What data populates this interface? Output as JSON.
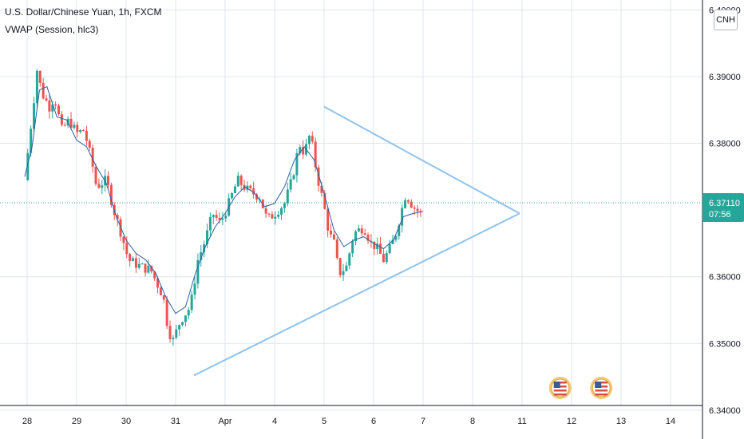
{
  "header": {
    "symbol_title": "U.S. Dollar/Chinese Yuan, 1h, FXCM",
    "indicator": "VWAP (Session, hlc3)"
  },
  "currency_button": "CNH",
  "last_price": {
    "label": "6.37110",
    "value": 6.3711,
    "countdown": "07:56"
  },
  "colors": {
    "up": "#26a69a",
    "down": "#ef5350",
    "vwap": "#2a5fa0",
    "trendline": "#90c3ec",
    "grid": "#dfe6ee",
    "last_price": "#26a69a"
  },
  "chart_data": {
    "type": "candlestick",
    "ylim": [
      6.3395,
      6.4015
    ],
    "yticks": [
      "6.40000",
      "6.39000",
      "6.38000",
      "6.36000",
      "6.35000",
      "6.34000"
    ],
    "xticks": [
      "28",
      "29",
      "30",
      "31",
      "Apr",
      "4",
      "5",
      "6",
      "7",
      "8",
      "11",
      "12",
      "13",
      "14"
    ],
    "grid": true,
    "price_path": [
      [
        -0.05,
        6.3745
      ],
      [
        0.05,
        6.381
      ],
      [
        0.12,
        6.3855
      ],
      [
        0.2,
        6.391
      ],
      [
        0.3,
        6.3875
      ],
      [
        0.45,
        6.3855
      ],
      [
        0.55,
        6.387
      ],
      [
        0.7,
        6.382
      ],
      [
        0.85,
        6.3835
      ],
      [
        1.0,
        6.3815
      ],
      [
        1.15,
        6.382
      ],
      [
        1.3,
        6.3775
      ],
      [
        1.4,
        6.3735
      ],
      [
        1.6,
        6.3745
      ],
      [
        1.75,
        6.37
      ],
      [
        1.9,
        6.3665
      ],
      [
        2.05,
        6.3625
      ],
      [
        2.3,
        6.3615
      ],
      [
        2.5,
        6.361
      ],
      [
        2.75,
        6.357
      ],
      [
        2.85,
        6.352
      ],
      [
        2.95,
        6.3505
      ],
      [
        3.1,
        6.3535
      ],
      [
        3.3,
        6.3555
      ],
      [
        3.45,
        6.3625
      ],
      [
        3.6,
        6.3655
      ],
      [
        3.75,
        6.3695
      ],
      [
        3.9,
        6.368
      ],
      [
        4.05,
        6.3705
      ],
      [
        4.25,
        6.3745
      ],
      [
        4.45,
        6.373
      ],
      [
        4.7,
        6.372
      ],
      [
        4.85,
        6.3685
      ],
      [
        5.0,
        6.3695
      ],
      [
        5.2,
        6.371
      ],
      [
        5.35,
        6.3745
      ],
      [
        5.5,
        6.38
      ],
      [
        5.6,
        6.3785
      ],
      [
        5.72,
        6.3815
      ],
      [
        5.85,
        6.3755
      ],
      [
        6.0,
        6.3705
      ],
      [
        6.1,
        6.3665
      ],
      [
        6.2,
        6.365
      ],
      [
        6.3,
        6.3605
      ],
      [
        6.45,
        6.3615
      ],
      [
        6.6,
        6.3665
      ],
      [
        6.8,
        6.3675
      ],
      [
        6.95,
        6.365
      ],
      [
        7.05,
        6.3645
      ],
      [
        7.2,
        6.3625
      ],
      [
        7.35,
        6.3645
      ],
      [
        7.45,
        6.3665
      ],
      [
        7.55,
        6.3695
      ],
      [
        7.65,
        6.3725
      ],
      [
        7.8,
        6.3705
      ],
      [
        7.95,
        6.3695
      ],
      [
        8.0,
        6.3711
      ]
    ],
    "vwap_path": [
      [
        -0.05,
        6.375
      ],
      [
        0.1,
        6.3795
      ],
      [
        0.25,
        6.388
      ],
      [
        0.4,
        6.3885
      ],
      [
        0.6,
        6.384
      ],
      [
        0.8,
        6.3835
      ],
      [
        1.0,
        6.3805
      ],
      [
        1.2,
        6.3795
      ],
      [
        1.4,
        6.3765
      ],
      [
        1.6,
        6.374
      ],
      [
        1.8,
        6.369
      ],
      [
        2.0,
        6.3655
      ],
      [
        2.2,
        6.3635
      ],
      [
        2.4,
        6.3625
      ],
      [
        2.6,
        6.3605
      ],
      [
        2.8,
        6.357
      ],
      [
        3.0,
        6.3545
      ],
      [
        3.2,
        6.3555
      ],
      [
        3.4,
        6.3605
      ],
      [
        3.6,
        6.3645
      ],
      [
        3.8,
        6.3675
      ],
      [
        4.0,
        6.3695
      ],
      [
        4.2,
        6.372
      ],
      [
        4.4,
        6.3735
      ],
      [
        4.6,
        6.3725
      ],
      [
        4.8,
        6.3705
      ],
      [
        5.0,
        6.371
      ],
      [
        5.2,
        6.3735
      ],
      [
        5.4,
        6.3775
      ],
      [
        5.6,
        6.3795
      ],
      [
        5.8,
        6.3775
      ],
      [
        6.0,
        6.3725
      ],
      [
        6.2,
        6.367
      ],
      [
        6.4,
        6.3645
      ],
      [
        6.6,
        6.3655
      ],
      [
        6.8,
        6.366
      ],
      [
        7.0,
        6.365
      ],
      [
        7.2,
        6.3642
      ],
      [
        7.4,
        6.3655
      ],
      [
        7.6,
        6.369
      ],
      [
        7.8,
        6.3695
      ],
      [
        8.0,
        6.3698
      ]
    ],
    "trendlines": [
      {
        "from": [
          6.0,
          6.3855
        ],
        "to": [
          9.95,
          6.3695
        ]
      },
      {
        "from": [
          3.37,
          6.3452
        ],
        "to": [
          9.95,
          6.3695
        ]
      }
    ]
  }
}
